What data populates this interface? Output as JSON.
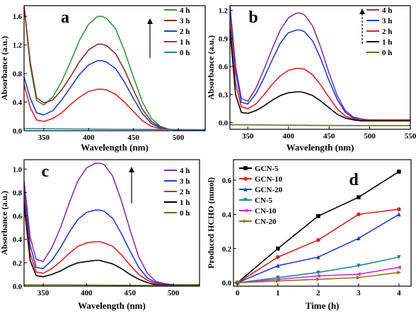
{
  "chart_data": [
    {
      "id": "a",
      "type": "line",
      "panel_label": "a",
      "xlabel": "Wavelength (nm)",
      "ylabel": "Absorbance (a.u.)",
      "xlim": [
        328,
        530
      ],
      "ylim": [
        0,
        1.75
      ],
      "xticks": [
        350,
        400,
        450,
        500
      ],
      "yticks": [
        0.0,
        0.4,
        0.8,
        1.2,
        1.6
      ],
      "ytick_labels": [
        "0.0",
        "0.4",
        "0.8",
        "1.2",
        "1.6"
      ],
      "legend_position": "top-right",
      "arrow": "up",
      "series": [
        {
          "name": "4 h",
          "color": "#2e9a3e",
          "x": [
            328,
            335,
            342,
            350,
            360,
            370,
            380,
            390,
            400,
            410,
            415,
            420,
            430,
            440,
            450,
            460,
            470,
            480,
            490,
            500,
            510,
            520,
            530
          ],
          "y": [
            1.75,
            0.9,
            0.42,
            0.36,
            0.47,
            0.69,
            0.97,
            1.27,
            1.49,
            1.6,
            1.6,
            1.57,
            1.43,
            1.12,
            0.75,
            0.4,
            0.17,
            0.06,
            0.02,
            0.01,
            0.01,
            0.01,
            0.01
          ]
        },
        {
          "name": "3 h",
          "color": "#8b2c2c",
          "x": [
            328,
            335,
            342,
            350,
            360,
            370,
            380,
            390,
            400,
            410,
            415,
            420,
            430,
            440,
            450,
            460,
            470,
            480,
            490,
            500,
            510,
            520,
            530
          ],
          "y": [
            1.75,
            0.95,
            0.46,
            0.39,
            0.43,
            0.57,
            0.76,
            0.97,
            1.13,
            1.21,
            1.21,
            1.19,
            1.08,
            0.85,
            0.57,
            0.3,
            0.13,
            0.05,
            0.02,
            0.01,
            0.01,
            0.01,
            0.01
          ]
        },
        {
          "name": "2 h",
          "color": "#1f3fcf",
          "x": [
            328,
            335,
            342,
            350,
            360,
            370,
            380,
            390,
            400,
            410,
            415,
            420,
            430,
            440,
            450,
            460,
            470,
            480,
            490,
            500,
            510,
            520,
            530
          ],
          "y": [
            0.75,
            0.45,
            0.25,
            0.22,
            0.28,
            0.43,
            0.61,
            0.79,
            0.92,
            0.98,
            0.98,
            0.96,
            0.87,
            0.68,
            0.45,
            0.24,
            0.1,
            0.04,
            0.02,
            0.01,
            0.01,
            0.01,
            0.01
          ]
        },
        {
          "name": "1 h",
          "color": "#e02020",
          "x": [
            328,
            335,
            342,
            350,
            360,
            370,
            380,
            390,
            400,
            410,
            415,
            420,
            430,
            440,
            450,
            460,
            470,
            480,
            490,
            500,
            510,
            520,
            530
          ],
          "y": [
            0.65,
            0.32,
            0.15,
            0.13,
            0.17,
            0.25,
            0.37,
            0.47,
            0.55,
            0.58,
            0.58,
            0.57,
            0.51,
            0.4,
            0.27,
            0.14,
            0.06,
            0.03,
            0.02,
            0.01,
            0.01,
            0.01,
            0.01
          ]
        },
        {
          "name": "0 h",
          "color": "#1f8a8a",
          "x": [
            328,
            380,
            430,
            480,
            530
          ],
          "y": [
            0.03,
            0.025,
            0.02,
            0.018,
            0.015
          ]
        }
      ]
    },
    {
      "id": "b",
      "type": "line",
      "panel_label": "b",
      "xlabel": "Wavelength (nm)",
      "ylabel": "Absorbance (a.u.)",
      "xlim": [
        328,
        550
      ],
      "ylim": [
        -0.07,
        1.25
      ],
      "xticks": [
        350,
        400,
        450,
        500,
        550
      ],
      "yticks": [
        0.0,
        0.3,
        0.6,
        0.9,
        1.2
      ],
      "ytick_labels": [
        "0.0",
        "0.3",
        "0.6",
        "0.9",
        "1.2"
      ],
      "legend_position": "top-right",
      "arrow": "up",
      "series": [
        {
          "name": "4 h",
          "color": "#8b2fa8",
          "x": [
            328,
            335,
            342,
            350,
            360,
            370,
            380,
            390,
            400,
            410,
            415,
            420,
            430,
            440,
            450,
            460,
            470,
            480,
            490,
            500,
            510,
            520,
            530,
            540,
            550
          ],
          "y": [
            1.25,
            0.6,
            0.26,
            0.23,
            0.37,
            0.57,
            0.79,
            0.99,
            1.12,
            1.17,
            1.17,
            1.15,
            1.03,
            0.8,
            0.53,
            0.29,
            0.13,
            0.06,
            0.04,
            0.03,
            0.03,
            0.03,
            0.03,
            0.03,
            0.03
          ]
        },
        {
          "name": "3 h",
          "color": "#1f3fcf",
          "x": [
            328,
            335,
            342,
            350,
            360,
            370,
            380,
            390,
            400,
            410,
            415,
            420,
            430,
            440,
            450,
            460,
            470,
            480,
            490,
            500,
            510,
            520,
            530,
            540,
            550
          ],
          "y": [
            1.25,
            0.55,
            0.22,
            0.2,
            0.31,
            0.48,
            0.67,
            0.85,
            0.96,
            0.99,
            0.99,
            0.97,
            0.87,
            0.68,
            0.45,
            0.25,
            0.11,
            0.05,
            0.03,
            0.03,
            0.03,
            0.03,
            0.03,
            0.03,
            0.03
          ]
        },
        {
          "name": "2 h",
          "color": "#e02020",
          "x": [
            328,
            335,
            342,
            350,
            360,
            370,
            380,
            390,
            400,
            410,
            415,
            420,
            430,
            440,
            450,
            460,
            470,
            480,
            490,
            500,
            510,
            520,
            530,
            540,
            550
          ],
          "y": [
            1.1,
            0.42,
            0.17,
            0.15,
            0.2,
            0.3,
            0.41,
            0.5,
            0.56,
            0.58,
            0.58,
            0.57,
            0.51,
            0.4,
            0.27,
            0.15,
            0.07,
            0.04,
            0.03,
            0.03,
            0.03,
            0.03,
            0.03,
            0.03,
            0.03
          ]
        },
        {
          "name": "1 h",
          "color": "#000000",
          "x": [
            328,
            335,
            342,
            350,
            360,
            370,
            380,
            390,
            400,
            410,
            415,
            420,
            430,
            440,
            450,
            460,
            470,
            480,
            490,
            500,
            510,
            520,
            530,
            540,
            550
          ],
          "y": [
            1.0,
            0.3,
            0.11,
            0.1,
            0.13,
            0.18,
            0.24,
            0.29,
            0.32,
            0.33,
            0.33,
            0.32,
            0.29,
            0.23,
            0.16,
            0.09,
            0.05,
            0.03,
            0.02,
            0.02,
            0.02,
            0.02,
            0.02,
            0.02,
            0.02
          ]
        },
        {
          "name": "0 h",
          "color": "#6b6b1a",
          "x": [
            328,
            380,
            430,
            480,
            550
          ],
          "y": [
            -0.02,
            -0.025,
            -0.028,
            -0.03,
            -0.03
          ]
        }
      ]
    },
    {
      "id": "c",
      "type": "line",
      "panel_label": "c",
      "xlabel": "Wavelength (nm)",
      "ylabel": "Absorbance (a.u.)",
      "xlim": [
        328,
        530
      ],
      "ylim": [
        0,
        1.08
      ],
      "xticks": [
        350,
        400,
        450,
        500
      ],
      "yticks": [
        0.0,
        0.2,
        0.4,
        0.6,
        0.8,
        1.0
      ],
      "ytick_labels": [
        "0.0",
        "0.2",
        "0.4",
        "0.6",
        "0.8",
        "1.0"
      ],
      "legend_position": "top-right",
      "arrow": "up",
      "series": [
        {
          "name": "4 h",
          "color": "#8b2fa8",
          "x": [
            328,
            335,
            342,
            350,
            360,
            370,
            380,
            390,
            400,
            410,
            415,
            420,
            430,
            440,
            450,
            460,
            470,
            480,
            490,
            500,
            510,
            520,
            530
          ],
          "y": [
            0.9,
            0.42,
            0.23,
            0.21,
            0.33,
            0.5,
            0.71,
            0.9,
            1.01,
            1.05,
            1.05,
            1.04,
            0.94,
            0.73,
            0.48,
            0.25,
            0.11,
            0.04,
            0.02,
            0.01,
            0.01,
            0.01,
            0.01
          ]
        },
        {
          "name": "3 h",
          "color": "#1f3fcf",
          "x": [
            328,
            335,
            342,
            350,
            360,
            370,
            380,
            390,
            400,
            410,
            415,
            420,
            430,
            440,
            450,
            460,
            470,
            480,
            490,
            500,
            510,
            520,
            530
          ],
          "y": [
            0.82,
            0.35,
            0.16,
            0.15,
            0.22,
            0.33,
            0.46,
            0.57,
            0.63,
            0.65,
            0.65,
            0.64,
            0.58,
            0.45,
            0.3,
            0.16,
            0.07,
            0.03,
            0.02,
            0.01,
            0.01,
            0.01,
            0.01
          ]
        },
        {
          "name": "2 h",
          "color": "#e02020",
          "x": [
            328,
            335,
            342,
            350,
            360,
            370,
            380,
            390,
            400,
            410,
            415,
            420,
            430,
            440,
            450,
            460,
            470,
            480,
            490,
            500,
            510,
            520,
            530
          ],
          "y": [
            0.75,
            0.28,
            0.12,
            0.11,
            0.15,
            0.21,
            0.28,
            0.34,
            0.37,
            0.38,
            0.38,
            0.37,
            0.34,
            0.27,
            0.18,
            0.1,
            0.05,
            0.02,
            0.01,
            0.01,
            0.01,
            0.01,
            0.01
          ]
        },
        {
          "name": "1 h",
          "color": "#000000",
          "x": [
            328,
            335,
            342,
            350,
            360,
            370,
            380,
            390,
            400,
            410,
            415,
            420,
            430,
            440,
            450,
            460,
            470,
            480,
            490,
            500,
            510,
            520,
            530
          ],
          "y": [
            0.7,
            0.22,
            0.09,
            0.08,
            0.1,
            0.13,
            0.17,
            0.2,
            0.21,
            0.22,
            0.22,
            0.21,
            0.19,
            0.15,
            0.1,
            0.06,
            0.03,
            0.01,
            0.01,
            0.01,
            0.01,
            0.01,
            0.01
          ]
        },
        {
          "name": "0 h",
          "color": "#6b6b1a",
          "x": [
            328,
            380,
            430,
            480,
            530
          ],
          "y": [
            0.01,
            0.01,
            0.008,
            0.006,
            0.005
          ]
        }
      ]
    },
    {
      "id": "d",
      "type": "line",
      "panel_label": "d",
      "xlabel": "Time (h)",
      "ylabel": "Produced HCHO (mmol)",
      "xlim": [
        -0.1,
        4.3
      ],
      "ylim": [
        -0.02,
        0.72
      ],
      "xticks": [
        0,
        1,
        2,
        3,
        4
      ],
      "yticks": [
        0.0,
        0.2,
        0.4,
        0.6
      ],
      "ytick_labels": [
        "0.0",
        "0.2",
        "0.4",
        "0.6"
      ],
      "legend_position": "top-left",
      "markers": true,
      "series": [
        {
          "name": "GCN-5",
          "color": "#000000",
          "marker": "square",
          "x": [
            0,
            1,
            2,
            3,
            4
          ],
          "y": [
            0,
            0.2,
            0.39,
            0.5,
            0.65
          ]
        },
        {
          "name": "GCN-10",
          "color": "#e02020",
          "marker": "circle",
          "x": [
            0,
            1,
            2,
            3,
            4
          ],
          "y": [
            0,
            0.15,
            0.25,
            0.4,
            0.43
          ]
        },
        {
          "name": "GCN-20",
          "color": "#1f3fcf",
          "marker": "triangle-up",
          "x": [
            0,
            1,
            2,
            3,
            4
          ],
          "y": [
            0,
            0.1,
            0.15,
            0.26,
            0.4
          ]
        },
        {
          "name": "CN-5",
          "color": "#1f8a8a",
          "marker": "triangle-down",
          "x": [
            0,
            1,
            2,
            3,
            4
          ],
          "y": [
            0,
            0.03,
            0.06,
            0.1,
            0.15
          ]
        },
        {
          "name": "CN-10",
          "color": "#e020e0",
          "marker": "triangle-left",
          "x": [
            0,
            1,
            2,
            3,
            4
          ],
          "y": [
            0,
            0.02,
            0.04,
            0.05,
            0.09
          ]
        },
        {
          "name": "CN-20",
          "color": "#8a7a1a",
          "marker": "triangle-right",
          "x": [
            0,
            1,
            2,
            3,
            4
          ],
          "y": [
            0,
            0.01,
            0.02,
            0.03,
            0.06
          ]
        }
      ]
    }
  ]
}
